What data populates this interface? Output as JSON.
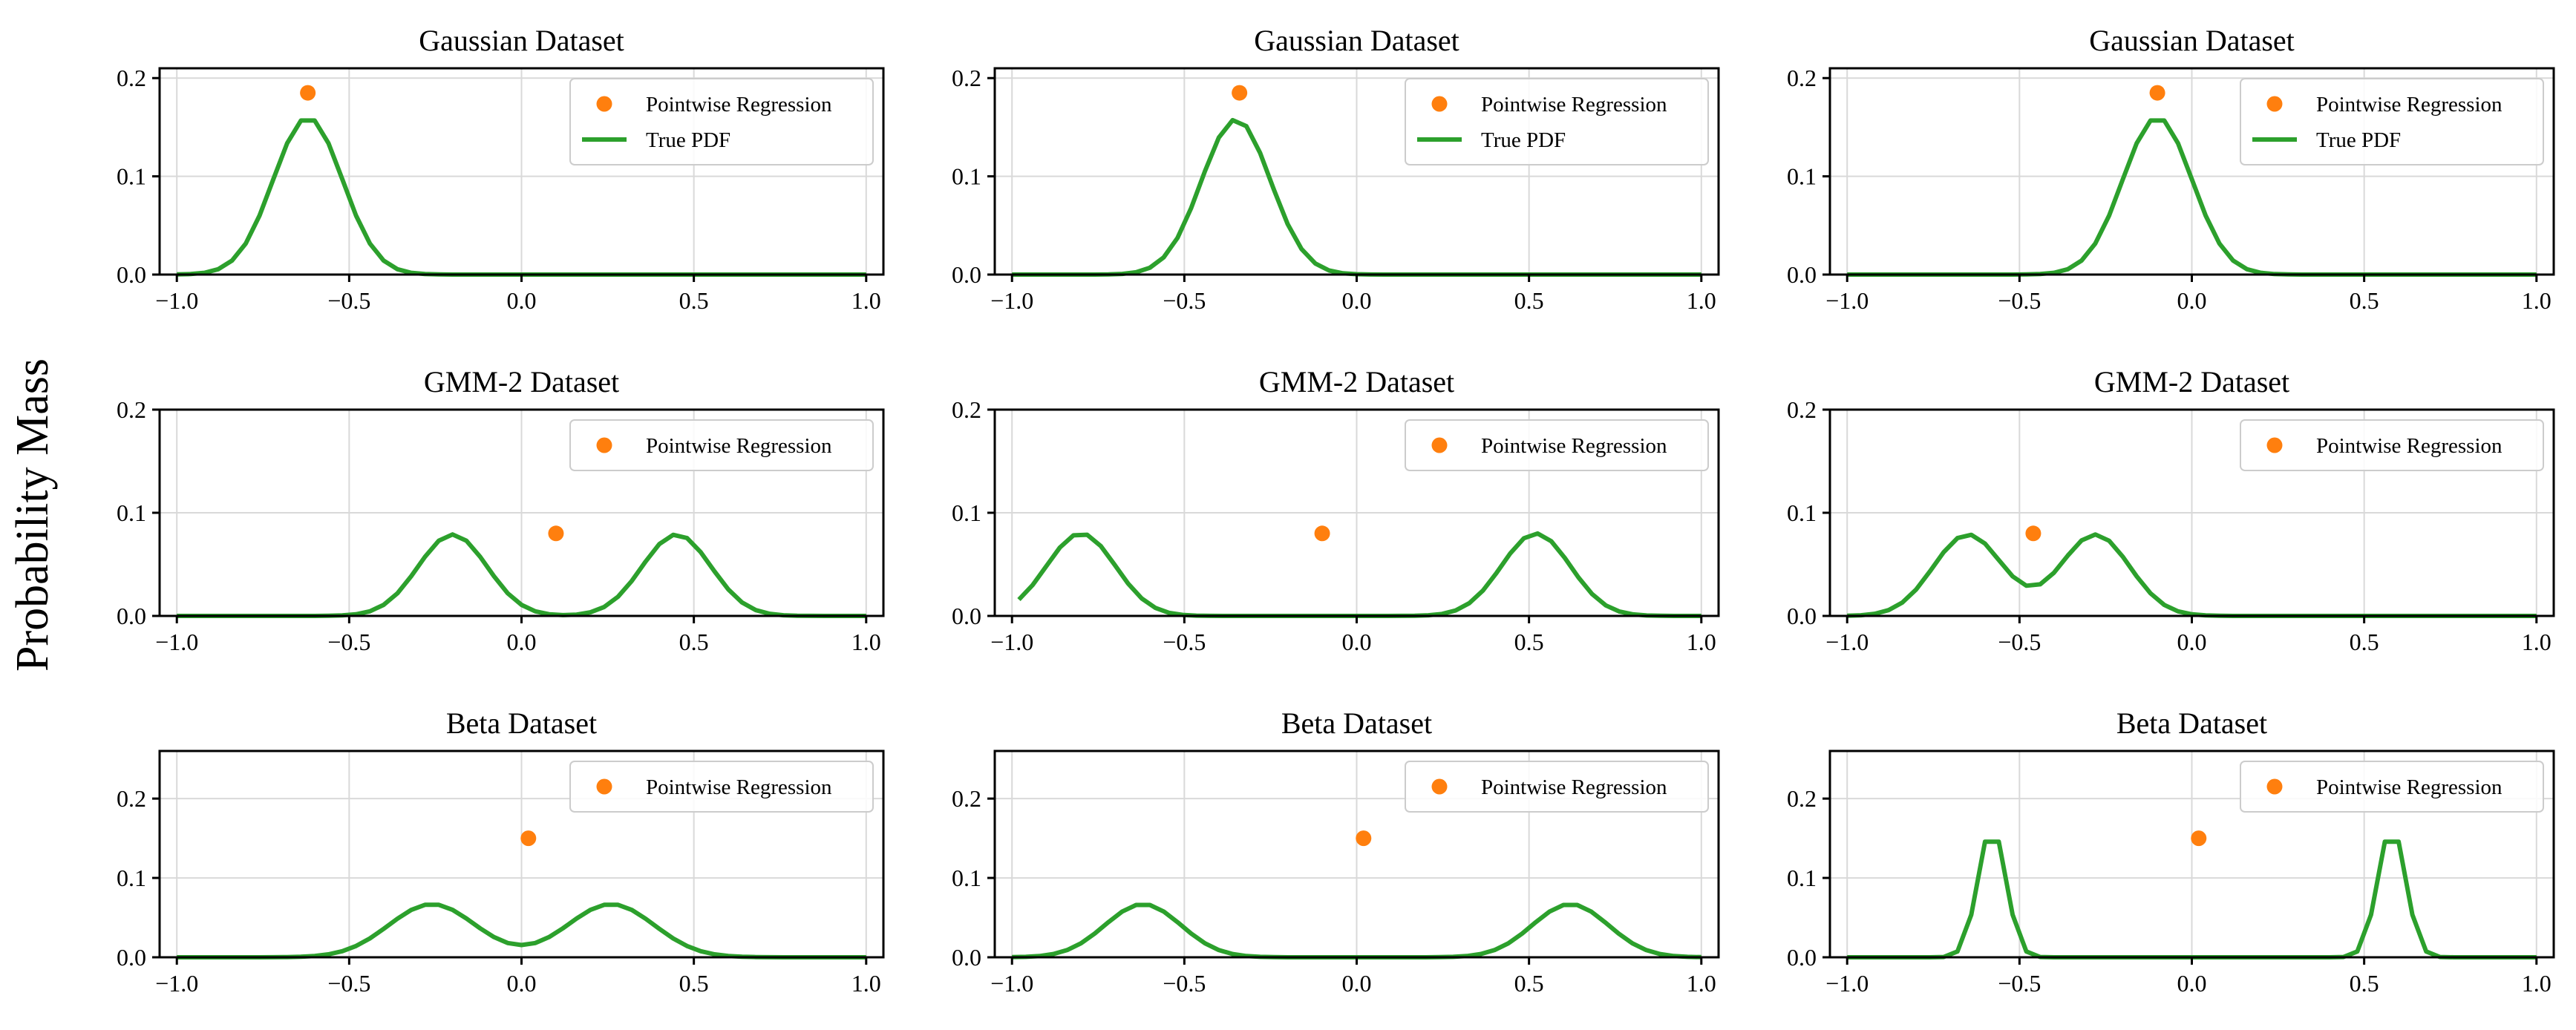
{
  "figure": {
    "ylabel": "Probability Mass"
  },
  "colors": {
    "pdf_line": "#2ca02c",
    "point": "#ff7f0e",
    "grid": "#d9d9d9",
    "axis": "#000000"
  },
  "chart_data": [
    {
      "type": "line",
      "title": "Gaussian Dataset",
      "xlim": [
        -1.05,
        1.05
      ],
      "ylim": [
        0,
        0.21
      ],
      "xticks": [
        -1.0,
        -0.5,
        0.0,
        0.5,
        1.0
      ],
      "xtick_labels": [
        "−1.0",
        "−0.5",
        "0.0",
        "0.5",
        "1.0"
      ],
      "yticks": [
        0.0,
        0.1,
        0.2
      ],
      "ytick_labels": [
        "0.0",
        "0.1",
        "0.2"
      ],
      "grid": true,
      "legend": {
        "placement": "top-right",
        "entries": [
          "Pointwise Regression",
          "True PDF"
        ]
      },
      "series": [
        {
          "name": "True PDF",
          "kind": "gaussian_pdf",
          "components": [
            {
              "mu": -0.62,
              "sigma": 0.1,
              "w": 1
            }
          ],
          "peak": 0.16,
          "x_range": [
            -1,
            1
          ]
        },
        {
          "name": "Pointwise Regression",
          "kind": "point",
          "x": -0.62,
          "y": 0.185
        }
      ]
    },
    {
      "type": "line",
      "title": "Gaussian Dataset",
      "xlim": [
        -1.05,
        1.05
      ],
      "ylim": [
        0,
        0.21
      ],
      "xticks": [
        -1.0,
        -0.5,
        0.0,
        0.5,
        1.0
      ],
      "xtick_labels": [
        "−1.0",
        "−0.5",
        "0.0",
        "0.5",
        "1.0"
      ],
      "yticks": [
        0.0,
        0.1,
        0.2
      ],
      "ytick_labels": [
        "0.0",
        "0.1",
        "0.2"
      ],
      "grid": true,
      "legend": {
        "placement": "top-right",
        "entries": [
          "Pointwise Regression",
          "True PDF"
        ]
      },
      "series": [
        {
          "name": "True PDF",
          "kind": "gaussian_pdf",
          "components": [
            {
              "mu": -0.35,
              "sigma": 0.1,
              "w": 1
            }
          ],
          "peak": 0.158,
          "x_range": [
            -1,
            1
          ]
        },
        {
          "name": "Pointwise Regression",
          "kind": "point",
          "x": -0.34,
          "y": 0.185
        }
      ]
    },
    {
      "type": "line",
      "title": "Gaussian Dataset",
      "xlim": [
        -1.05,
        1.05
      ],
      "ylim": [
        0,
        0.21
      ],
      "xticks": [
        -1.0,
        -0.5,
        0.0,
        0.5,
        1.0
      ],
      "xtick_labels": [
        "−1.0",
        "−0.5",
        "0.0",
        "0.5",
        "1.0"
      ],
      "yticks": [
        0.0,
        0.1,
        0.2
      ],
      "ytick_labels": [
        "0.0",
        "0.1",
        "0.2"
      ],
      "grid": true,
      "legend": {
        "placement": "top-right",
        "entries": [
          "Pointwise Regression",
          "True PDF"
        ]
      },
      "series": [
        {
          "name": "True PDF",
          "kind": "gaussian_pdf",
          "components": [
            {
              "mu": -0.1,
              "sigma": 0.1,
              "w": 1
            }
          ],
          "peak": 0.16,
          "x_range": [
            -1,
            1
          ]
        },
        {
          "name": "Pointwise Regression",
          "kind": "point",
          "x": -0.1,
          "y": 0.185
        }
      ]
    },
    {
      "type": "line",
      "title": "GMM-2 Dataset",
      "xlim": [
        -1.05,
        1.05
      ],
      "ylim": [
        0,
        0.2
      ],
      "xticks": [
        -1.0,
        -0.5,
        0.0,
        0.5,
        1.0
      ],
      "xtick_labels": [
        "−1.0",
        "−0.5",
        "0.0",
        "0.5",
        "1.0"
      ],
      "yticks": [
        0.0,
        0.1,
        0.2
      ],
      "ytick_labels": [
        "0.0",
        "0.1",
        "0.2"
      ],
      "grid": true,
      "legend": {
        "placement": "top-right",
        "entries": [
          "Pointwise Regression"
        ]
      },
      "series": [
        {
          "name": "True PDF",
          "kind": "gaussian_pdf",
          "components": [
            {
              "mu": -0.2,
              "sigma": 0.1,
              "w": 1
            },
            {
              "mu": 0.45,
              "sigma": 0.1,
              "w": 1
            }
          ],
          "peak": 0.079,
          "x_range": [
            -1,
            1
          ]
        },
        {
          "name": "Pointwise Regression",
          "kind": "point",
          "x": 0.1,
          "y": 0.08
        }
      ]
    },
    {
      "type": "line",
      "title": "GMM-2 Dataset",
      "xlim": [
        -1.05,
        1.05
      ],
      "ylim": [
        0,
        0.2
      ],
      "xticks": [
        -1.0,
        -0.5,
        0.0,
        0.5,
        1.0
      ],
      "xtick_labels": [
        "−1.0",
        "−0.5",
        "0.0",
        "0.5",
        "1.0"
      ],
      "yticks": [
        0.0,
        0.1,
        0.2
      ],
      "ytick_labels": [
        "0.0",
        "0.1",
        "0.2"
      ],
      "grid": true,
      "legend": {
        "placement": "top-right",
        "entries": [
          "Pointwise Regression"
        ]
      },
      "series": [
        {
          "name": "True PDF",
          "kind": "gaussian_pdf",
          "components": [
            {
              "mu": -0.8,
              "sigma": 0.1,
              "w": 1
            },
            {
              "mu": 0.52,
              "sigma": 0.1,
              "w": 1
            }
          ],
          "peak": 0.08,
          "x_range": [
            -0.98,
            1
          ]
        },
        {
          "name": "Pointwise Regression",
          "kind": "point",
          "x": -0.1,
          "y": 0.08
        }
      ]
    },
    {
      "type": "line",
      "title": "GMM-2 Dataset",
      "xlim": [
        -1.05,
        1.05
      ],
      "ylim": [
        0,
        0.2
      ],
      "xticks": [
        -1.0,
        -0.5,
        0.0,
        0.5,
        1.0
      ],
      "xtick_labels": [
        "−1.0",
        "−0.5",
        "0.0",
        "0.5",
        "1.0"
      ],
      "yticks": [
        0.0,
        0.1,
        0.2
      ],
      "ytick_labels": [
        "0.0",
        "0.1",
        "0.2"
      ],
      "grid": true,
      "legend": {
        "placement": "top-right",
        "entries": [
          "Pointwise Regression"
        ]
      },
      "series": [
        {
          "name": "True PDF",
          "kind": "gaussian_pdf",
          "components": [
            {
              "mu": -0.65,
              "sigma": 0.1,
              "w": 1
            },
            {
              "mu": -0.28,
              "sigma": 0.1,
              "w": 1
            }
          ],
          "peak": 0.079,
          "x_range": [
            -1,
            1
          ]
        },
        {
          "name": "Pointwise Regression",
          "kind": "point",
          "x": -0.46,
          "y": 0.08
        }
      ]
    },
    {
      "type": "line",
      "title": "Beta Dataset",
      "xlim": [
        -1.05,
        1.05
      ],
      "ylim": [
        0,
        0.26
      ],
      "xticks": [
        -1.0,
        -0.5,
        0.0,
        0.5,
        1.0
      ],
      "xtick_labels": [
        "−1.0",
        "−0.5",
        "0.0",
        "0.5",
        "1.0"
      ],
      "yticks": [
        0.0,
        0.1,
        0.2
      ],
      "ytick_labels": [
        "0.0",
        "0.1",
        "0.2"
      ],
      "grid": true,
      "legend": {
        "placement": "top-right",
        "entries": [
          "Pointwise Regression"
        ]
      },
      "series": [
        {
          "name": "True PDF",
          "kind": "gaussian_pdf",
          "components": [
            {
              "mu": -0.26,
              "sigma": 0.125,
              "w": 1
            },
            {
              "mu": 0.26,
              "sigma": 0.125,
              "w": 1
            }
          ],
          "peak": 0.067,
          "x_range": [
            -1,
            1
          ]
        },
        {
          "name": "Pointwise Regression",
          "kind": "point",
          "x": 0.02,
          "y": 0.15
        }
      ]
    },
    {
      "type": "line",
      "title": "Beta Dataset",
      "xlim": [
        -1.05,
        1.05
      ],
      "ylim": [
        0,
        0.26
      ],
      "xticks": [
        -1.0,
        -0.5,
        0.0,
        0.5,
        1.0
      ],
      "xtick_labels": [
        "−1.0",
        "−0.5",
        "0.0",
        "0.5",
        "1.0"
      ],
      "yticks": [
        0.0,
        0.1,
        0.2
      ],
      "ytick_labels": [
        "0.0",
        "0.1",
        "0.2"
      ],
      "grid": true,
      "legend": {
        "placement": "top-right",
        "entries": [
          "Pointwise Regression"
        ]
      },
      "series": [
        {
          "name": "True PDF",
          "kind": "gaussian_pdf",
          "components": [
            {
              "mu": -0.62,
              "sigma": 0.11,
              "w": 1
            },
            {
              "mu": 0.62,
              "sigma": 0.11,
              "w": 1
            }
          ],
          "peak": 0.067,
          "x_range": [
            -1,
            1
          ]
        },
        {
          "name": "Pointwise Regression",
          "kind": "point",
          "x": 0.02,
          "y": 0.15
        }
      ]
    },
    {
      "type": "line",
      "title": "Beta Dataset",
      "xlim": [
        -1.05,
        1.05
      ],
      "ylim": [
        0,
        0.26
      ],
      "xticks": [
        -1.0,
        -0.5,
        0.0,
        0.5,
        1.0
      ],
      "xtick_labels": [
        "−1.0",
        "−0.5",
        "0.0",
        "0.5",
        "1.0"
      ],
      "yticks": [
        0.0,
        0.1,
        0.2
      ],
      "ytick_labels": [
        "0.0",
        "0.1",
        "0.2"
      ],
      "grid": true,
      "legend": {
        "placement": "top-right",
        "entries": [
          "Pointwise Regression"
        ]
      },
      "series": [
        {
          "name": "True PDF",
          "kind": "gaussian_pdf",
          "components": [
            {
              "mu": -0.58,
              "sigma": 0.04,
              "w": 1
            },
            {
              "mu": 0.58,
              "sigma": 0.04,
              "w": 1
            }
          ],
          "peak": 0.165,
          "x_range": [
            -1,
            1
          ]
        },
        {
          "name": "Pointwise Regression",
          "kind": "point",
          "x": 0.02,
          "y": 0.15
        }
      ]
    }
  ]
}
